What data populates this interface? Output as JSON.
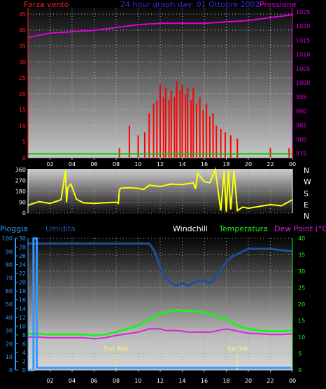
{
  "titles": {
    "wind_speed": "Forza vento",
    "subtitle": "24 hour graph day: 01 Ottobre 2002",
    "pressure": "Pressione",
    "rain": "Pioggia",
    "humidity": "Umidita",
    "windchill": "Windchill",
    "temperature": "Temperatura",
    "dewpoint": "Dew Point (°C)"
  },
  "annotations": {
    "sunrise": "Sun Rise",
    "sunset": "Sun Set"
  },
  "colors": {
    "wind": "#ff0000",
    "gust_low": "#00cc00",
    "pressure": "#dd00dd",
    "direction": "#ffff00",
    "humidity": "#1f4f99",
    "temperature": "#22ee22",
    "dewpoint": "#dd22dd",
    "rain": "#3399ff",
    "rain_axis": "#3399ff",
    "temp_axis": "#22ee22"
  },
  "chart_data": [
    {
      "type": "bar",
      "name": "wind",
      "x_ticks": [
        "02",
        "04",
        "06",
        "08",
        "10",
        "12",
        "14",
        "16",
        "18",
        "20",
        "22",
        "00"
      ],
      "left_ticks": [
        "0",
        "5",
        "10",
        "15",
        "20",
        "25",
        "30",
        "35",
        "40",
        "45"
      ],
      "right_ticks": [
        "975",
        "980",
        "985",
        "990",
        "995",
        "1000",
        "1005",
        "1010",
        "1015",
        "1020",
        "1025"
      ],
      "ylim": [
        0,
        47
      ],
      "y2lim": [
        973.5,
        1026.5
      ],
      "wind_hours": [
        8.3,
        9.2,
        10.0,
        10.6,
        11.0,
        11.4,
        11.7,
        12.0,
        12.3,
        12.5,
        12.8,
        13.0,
        13.3,
        13.5,
        13.8,
        14.0,
        14.3,
        14.5,
        14.8,
        15.0,
        15.3,
        15.6,
        15.9,
        16.2,
        16.5,
        16.8,
        17.1,
        17.5,
        17.9,
        18.4,
        19.0,
        22.0,
        23.7,
        24.0
      ],
      "wind_values": [
        3,
        10,
        7,
        8,
        14,
        17,
        18,
        23,
        19,
        22,
        18,
        21,
        19,
        24,
        21,
        23,
        20,
        22,
        18,
        22,
        17,
        19,
        15,
        17,
        13,
        14,
        10,
        9,
        8,
        7,
        6,
        3,
        3,
        4
      ],
      "pressure_hours": [
        0,
        2,
        4,
        6,
        8,
        10,
        12,
        14,
        16,
        18,
        20,
        22,
        24
      ],
      "pressure_values": [
        1016,
        1017.5,
        1018,
        1018.5,
        1019.5,
        1020.5,
        1021,
        1021,
        1021,
        1021.5,
        1022,
        1023,
        1024
      ]
    },
    {
      "type": "line",
      "name": "direction",
      "y_ticks": [
        "0",
        "90",
        "180",
        "270",
        "360"
      ],
      "right_letters": [
        "N",
        "W",
        "S",
        "E",
        "N"
      ],
      "ylim": [
        0,
        365
      ],
      "hours": [
        0,
        1,
        2,
        3,
        3.4,
        3.5,
        3.6,
        3.9,
        4.4,
        5.0,
        6.0,
        7.0,
        8.0,
        8.2,
        8.3,
        8.4,
        9.0,
        10.0,
        10.5,
        11.0,
        12.0,
        13.0,
        14.0,
        15.0,
        15.2,
        15.4,
        16.0,
        16.5,
        17.0,
        17.5,
        17.8,
        18.0,
        18.2,
        18.4,
        18.7,
        19.0,
        19.5,
        20.0,
        21.0,
        22.0,
        23.0,
        24.0
      ],
      "values": [
        65,
        95,
        80,
        110,
        350,
        90,
        210,
        240,
        115,
        85,
        80,
        85,
        90,
        80,
        190,
        205,
        210,
        205,
        195,
        230,
        220,
        240,
        235,
        250,
        200,
        330,
        260,
        250,
        360,
        20,
        350,
        10,
        350,
        30,
        350,
        20,
        50,
        40,
        55,
        70,
        60,
        110
      ]
    },
    {
      "type": "line",
      "name": "meteo",
      "left_ticks": [
        "0",
        "10",
        "20",
        "30",
        "40",
        "50",
        "60",
        "70",
        "80",
        "90",
        "100"
      ],
      "rain_ticks": [
        "0",
        "2",
        "4",
        "6",
        "8",
        "10",
        "12",
        "14",
        "16",
        "18",
        "20",
        "22",
        "24",
        "26",
        "28",
        "30"
      ],
      "temp_ticks": [
        "0",
        "5",
        "10",
        "15",
        "20",
        "25",
        "30",
        "35",
        "40"
      ],
      "ylim_humidity": [
        0,
        100
      ],
      "ylim_temp": [
        0,
        40
      ],
      "hours": [
        0,
        1,
        2,
        3,
        4,
        5,
        6,
        7,
        8,
        9,
        10,
        10.5,
        11,
        11.5,
        12,
        12.5,
        13,
        13.5,
        14,
        14.5,
        15,
        15.5,
        16,
        16.5,
        17,
        17.5,
        18,
        18.5,
        19,
        19.5,
        20,
        21,
        22,
        23,
        24
      ],
      "humidity": [
        96,
        96,
        96,
        96,
        96,
        96,
        96,
        96,
        96,
        96,
        96,
        96,
        96,
        90,
        78,
        70,
        66,
        64,
        66,
        64,
        66,
        68,
        68,
        66,
        70,
        76,
        82,
        86,
        88,
        90,
        92,
        92,
        92,
        91,
        90
      ],
      "temperature": [
        11,
        11,
        10.8,
        10.8,
        10.8,
        10.8,
        10.5,
        10.8,
        11.5,
        12.5,
        13.5,
        14.5,
        15.5,
        16,
        17,
        17.5,
        18,
        18.2,
        18,
        18,
        17.8,
        17.8,
        17.5,
        17,
        16.5,
        16,
        15.5,
        14.5,
        13.5,
        13,
        12.5,
        12,
        11.8,
        11.8,
        12
      ],
      "dewpoint": [
        10,
        10,
        9.8,
        9.8,
        9.8,
        9.8,
        9.5,
        9.8,
        10.5,
        11,
        11.5,
        12,
        12.5,
        12.5,
        12.5,
        12,
        12,
        12,
        11.8,
        11.5,
        11.5,
        11.5,
        11.5,
        11.5,
        11.8,
        12.2,
        12.5,
        12.2,
        11.8,
        11.5,
        11.2,
        11,
        10.8,
        10.8,
        11
      ],
      "rain_hours": [
        0.5,
        23.9
      ],
      "rain_values": [
        30,
        0.5
      ],
      "sunrise_hour": 8.0,
      "sunset_hour": 19.0
    }
  ]
}
